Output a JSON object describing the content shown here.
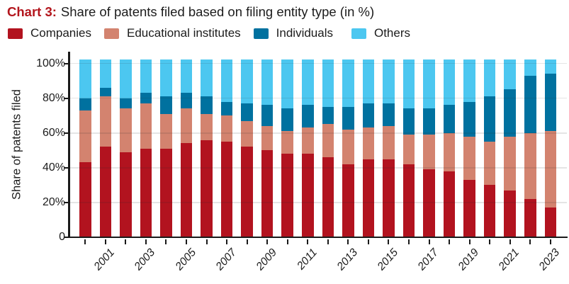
{
  "title": {
    "prefix": "Chart 3:",
    "text": "Share of patents filed based on filing entity type (in %)"
  },
  "legend": [
    {
      "label": "Companies",
      "color": "#b2131f"
    },
    {
      "label": "Educational institutes",
      "color": "#d3836f"
    },
    {
      "label": "Individuals",
      "color": "#00719f"
    },
    {
      "label": "Others",
      "color": "#4cc7f0"
    }
  ],
  "colors": {
    "title_accent": "#b3161d",
    "axis": "#1a1a1a",
    "text": "#1c1c1c",
    "gridline": "#e2e2e2",
    "background": "#ffffff"
  },
  "chart_data": {
    "type": "bar",
    "stacked": true,
    "percent_stacked": true,
    "title": "Chart 3: Share of patents filed based on filing entity type (in %)",
    "xlabel": "",
    "ylabel": "Share of patents filed",
    "ylim": [
      0,
      100
    ],
    "grid": true,
    "legend_position": "top",
    "categories": [
      "2000",
      "2001",
      "2002",
      "2003",
      "2004",
      "2005",
      "2006",
      "2007",
      "2008",
      "2009",
      "2010",
      "2011",
      "2012",
      "2013",
      "2014",
      "2015",
      "2016",
      "2017",
      "2018",
      "2019",
      "2020",
      "2021",
      "2022",
      "2023"
    ],
    "x_tick_labels": [
      "2001",
      "2003",
      "2005",
      "2007",
      "2009",
      "2011",
      "2013",
      "2015",
      "2017",
      "2019",
      "2021",
      "2023"
    ],
    "y_tick_values": [
      100,
      80,
      60,
      40,
      20,
      0
    ],
    "y_tick_labels": [
      "100%",
      "80%",
      "60%",
      "40%",
      "20%",
      "0"
    ],
    "gridline_values": [
      20,
      40,
      60,
      80,
      100
    ],
    "series": [
      {
        "name": "Companies",
        "color": "#b2131f",
        "values": [
          43,
          52,
          49,
          51,
          51,
          54,
          56,
          55,
          52,
          50,
          48,
          48,
          46,
          42,
          45,
          45,
          42,
          39,
          38,
          33,
          30,
          27,
          22,
          17
        ]
      },
      {
        "name": "Educational institutes",
        "color": "#d3836f",
        "values": [
          30,
          29,
          25,
          26,
          20,
          20,
          15,
          15,
          15,
          14,
          13,
          15,
          19,
          20,
          18,
          19,
          17,
          20,
          22,
          25,
          25,
          31,
          38,
          44
        ]
      },
      {
        "name": "Individuals",
        "color": "#00719f",
        "values": [
          7,
          5,
          6,
          6,
          10,
          9,
          10,
          8,
          10,
          12,
          13,
          13,
          10,
          13,
          14,
          13,
          15,
          15,
          16,
          20,
          26,
          27,
          33,
          33
        ]
      },
      {
        "name": "Others",
        "color": "#4cc7f0",
        "values": [
          20,
          14,
          20,
          17,
          19,
          17,
          19,
          22,
          23,
          24,
          26,
          24,
          25,
          25,
          23,
          23,
          26,
          26,
          24,
          22,
          19,
          15,
          7,
          6
        ]
      }
    ]
  }
}
